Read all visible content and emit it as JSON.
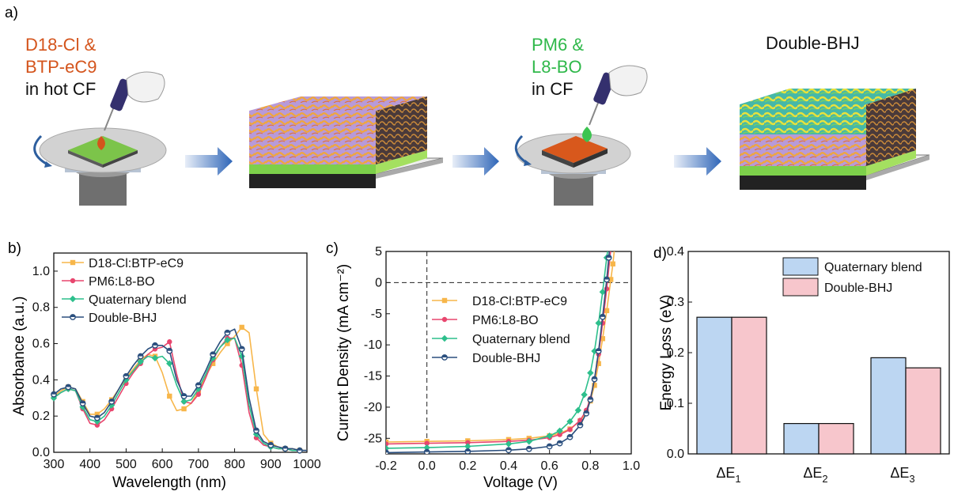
{
  "panel_a": {
    "label": "a)",
    "step1": {
      "line1": "D18-Cl &",
      "line2": "BTP-eC9",
      "line3": "in hot CF"
    },
    "step2": {
      "line1": "PM6 &",
      "line2": "L8-BO",
      "line3": "in CF"
    },
    "result_title": "Double-BHJ",
    "colors": {
      "orange_text": "#d4541c",
      "green_text": "#2fb84a"
    }
  },
  "chart_data": [
    {
      "panel": "b)",
      "type": "line",
      "xlabel": "Wavelength (nm)",
      "ylabel": "Absorbance (a.u.)",
      "xlim": [
        300,
        1000
      ],
      "ylim": [
        0.0,
        1.1
      ],
      "xticks": [
        300,
        400,
        500,
        600,
        700,
        800,
        900,
        1000
      ],
      "yticks": [
        0.0,
        0.2,
        0.4,
        0.6,
        0.8,
        1.0
      ],
      "x": [
        300,
        320,
        340,
        360,
        380,
        400,
        420,
        440,
        460,
        480,
        500,
        520,
        540,
        560,
        580,
        600,
        620,
        640,
        660,
        680,
        700,
        720,
        740,
        760,
        780,
        800,
        820,
        840,
        860,
        880,
        900,
        920,
        940,
        960,
        980,
        1000
      ],
      "legend_position": "top-left",
      "series": [
        {
          "name": "D18-Cl:BTP-eC9",
          "color": "#f7b64a",
          "marker": "square",
          "values": [
            0.31,
            0.34,
            0.36,
            0.35,
            0.28,
            0.21,
            0.21,
            0.24,
            0.29,
            0.35,
            0.41,
            0.46,
            0.51,
            0.54,
            0.53,
            0.44,
            0.31,
            0.23,
            0.24,
            0.27,
            0.34,
            0.42,
            0.49,
            0.55,
            0.6,
            0.64,
            0.69,
            0.66,
            0.35,
            0.1,
            0.05,
            0.03,
            0.02,
            0.02,
            0.01,
            0.01
          ]
        },
        {
          "name": "PM6:L8-BO",
          "color": "#e8466e",
          "marker": "circle",
          "values": [
            0.3,
            0.33,
            0.35,
            0.34,
            0.24,
            0.16,
            0.15,
            0.18,
            0.24,
            0.31,
            0.38,
            0.44,
            0.49,
            0.54,
            0.57,
            0.58,
            0.61,
            0.43,
            0.28,
            0.27,
            0.32,
            0.41,
            0.51,
            0.58,
            0.63,
            0.63,
            0.48,
            0.22,
            0.08,
            0.04,
            0.03,
            0.02,
            0.02,
            0.01,
            0.01,
            0.01
          ]
        },
        {
          "name": "Quaternary blend",
          "color": "#2dbf8c",
          "marker": "diamond",
          "values": [
            0.3,
            0.33,
            0.35,
            0.34,
            0.25,
            0.18,
            0.17,
            0.2,
            0.26,
            0.33,
            0.4,
            0.45,
            0.5,
            0.53,
            0.52,
            0.53,
            0.49,
            0.37,
            0.28,
            0.29,
            0.35,
            0.43,
            0.52,
            0.58,
            0.62,
            0.63,
            0.53,
            0.26,
            0.1,
            0.05,
            0.03,
            0.02,
            0.02,
            0.01,
            0.01,
            0.01
          ]
        },
        {
          "name": "Double-BHJ",
          "color": "#2b4f7e",
          "marker": "circle-half",
          "values": [
            0.32,
            0.35,
            0.36,
            0.35,
            0.27,
            0.2,
            0.19,
            0.22,
            0.28,
            0.35,
            0.42,
            0.48,
            0.53,
            0.57,
            0.59,
            0.59,
            0.56,
            0.4,
            0.31,
            0.31,
            0.37,
            0.45,
            0.54,
            0.61,
            0.66,
            0.68,
            0.57,
            0.3,
            0.12,
            0.06,
            0.04,
            0.03,
            0.02,
            0.02,
            0.01,
            0.01
          ]
        }
      ]
    },
    {
      "panel": "c)",
      "type": "line",
      "xlabel": "Voltage (V)",
      "ylabel": "Current Density (mA cm⁻²)",
      "xlim": [
        -0.2,
        1.0
      ],
      "ylim": [
        -27.5,
        5
      ],
      "xticks": [
        -0.2,
        0.0,
        0.2,
        0.4,
        0.6,
        0.8,
        1.0
      ],
      "yticks": [
        5,
        0,
        -5,
        -10,
        -15,
        -20,
        -25
      ],
      "reference_lines": {
        "y0_dashed": true,
        "x0_dashed": true
      },
      "legend_position": "center-right",
      "series": [
        {
          "name": "D18-Cl:BTP-eC9",
          "color": "#f7b64a",
          "marker": "square",
          "x": [
            -0.2,
            0.0,
            0.2,
            0.4,
            0.5,
            0.6,
            0.65,
            0.7,
            0.75,
            0.78,
            0.8,
            0.82,
            0.84,
            0.86,
            0.88,
            0.9,
            0.91,
            0.92,
            0.93
          ],
          "y": [
            -25.6,
            -25.5,
            -25.4,
            -25.2,
            -25.0,
            -24.6,
            -24.2,
            -23.5,
            -22.2,
            -20.8,
            -19.0,
            -16.5,
            -13.0,
            -9.0,
            -4.5,
            0.5,
            3.0,
            6.0,
            9.0
          ]
        },
        {
          "name": "PM6:L8-BO",
          "color": "#e8466e",
          "marker": "circle",
          "x": [
            -0.2,
            0.0,
            0.2,
            0.4,
            0.5,
            0.6,
            0.65,
            0.7,
            0.75,
            0.78,
            0.8,
            0.82,
            0.84,
            0.86,
            0.88,
            0.9,
            0.91
          ],
          "y": [
            -25.9,
            -25.8,
            -25.7,
            -25.5,
            -25.3,
            -24.9,
            -24.4,
            -23.6,
            -22.1,
            -20.5,
            -18.6,
            -15.6,
            -11.5,
            -6.5,
            -1.0,
            5.5,
            9.0
          ]
        },
        {
          "name": "Quaternary blend",
          "color": "#2dbf8c",
          "marker": "diamond",
          "x": [
            -0.2,
            0.0,
            0.2,
            0.4,
            0.5,
            0.6,
            0.65,
            0.7,
            0.74,
            0.77,
            0.8,
            0.82,
            0.84,
            0.86,
            0.88,
            0.9
          ],
          "y": [
            -26.6,
            -26.5,
            -26.3,
            -25.9,
            -25.5,
            -24.6,
            -23.8,
            -22.3,
            -20.5,
            -18.0,
            -14.5,
            -11.0,
            -6.5,
            -1.5,
            4.0,
            9.0
          ]
        },
        {
          "name": "Double-BHJ",
          "color": "#2b4f7e",
          "marker": "circle-half",
          "x": [
            -0.2,
            0.0,
            0.2,
            0.4,
            0.5,
            0.6,
            0.65,
            0.7,
            0.75,
            0.78,
            0.8,
            0.82,
            0.84,
            0.86,
            0.88,
            0.89,
            0.9
          ],
          "y": [
            -27.3,
            -27.2,
            -27.1,
            -26.9,
            -26.7,
            -26.3,
            -25.8,
            -24.8,
            -22.9,
            -21.0,
            -18.8,
            -15.5,
            -11.0,
            -5.5,
            0.5,
            4.0,
            8.0
          ]
        }
      ]
    },
    {
      "panel": "d)",
      "type": "bar",
      "ylabel": "Energy Loss (eV)",
      "ylim": [
        0.0,
        0.4
      ],
      "yticks": [
        0.0,
        0.1,
        0.2,
        0.3,
        0.4
      ],
      "categories": [
        "ΔE1",
        "ΔE2",
        "ΔE3"
      ],
      "legend_position": "top-right",
      "series": [
        {
          "name": "Quaternary blend",
          "color": "#bcd6f2",
          "values": [
            0.27,
            0.06,
            0.19
          ]
        },
        {
          "name": "Double-BHJ",
          "color": "#f7c6cc",
          "values": [
            0.27,
            0.06,
            0.17
          ]
        }
      ]
    }
  ]
}
